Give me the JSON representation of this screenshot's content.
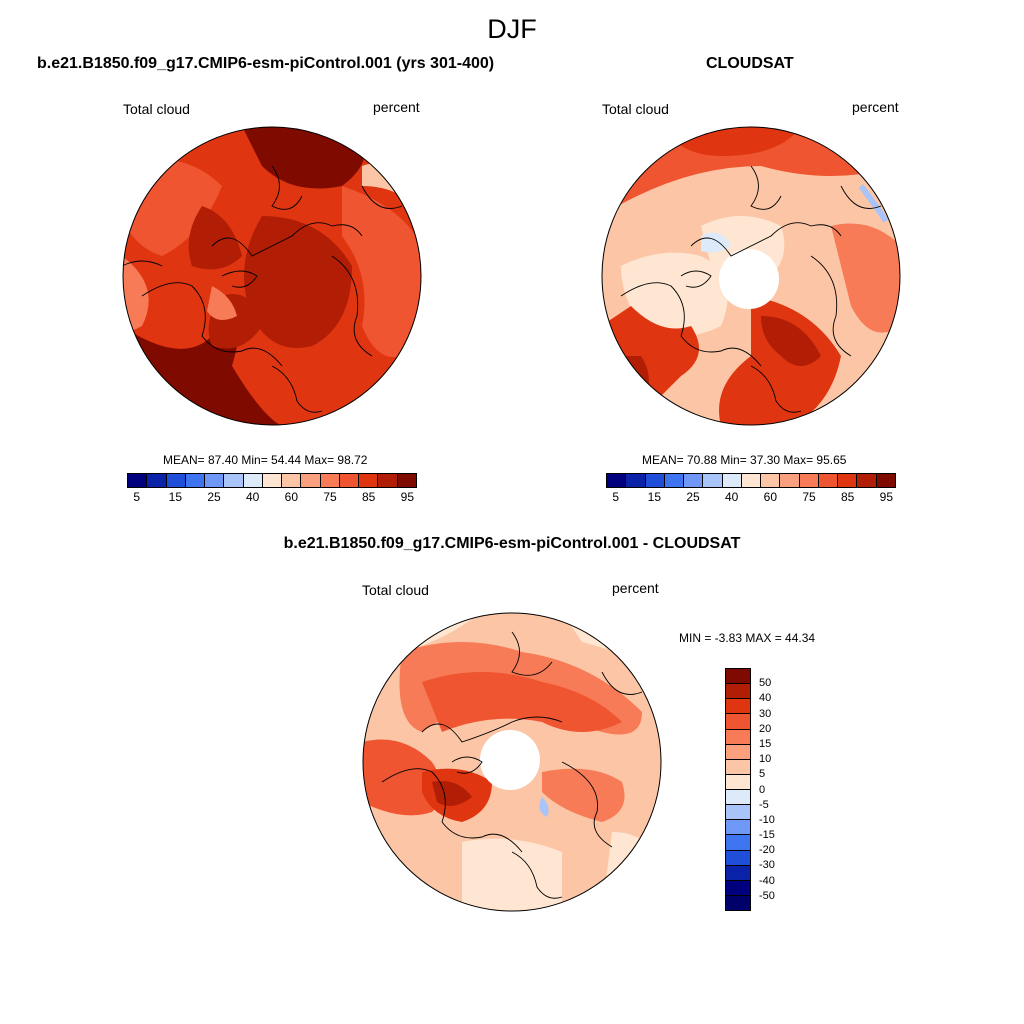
{
  "figure": {
    "title": "DJF"
  },
  "chart_data": [
    {
      "type": "heatmap",
      "title": "b.e21.B1850.f09_g17.CMIP6-esm-piControl.001 (yrs 301-400)",
      "left_label": "Total cloud",
      "right_label": "percent",
      "stats_text": "MEAN=  87.40  Min=  54.44  Max=  98.72",
      "stats": {
        "mean": 87.4,
        "min": 54.44,
        "max": 98.72
      },
      "colorbar": {
        "tick_labels": [
          "5",
          "15",
          "25",
          "40",
          "60",
          "75",
          "85",
          "95"
        ],
        "colors": [
          "#00007f",
          "#0a22a8",
          "#1f4fd8",
          "#3f74f0",
          "#6f98f6",
          "#a9c4f8",
          "#ddeaf9",
          "#fee6d2",
          "#fcc6a6",
          "#fba07e",
          "#f77b56",
          "#ee5530",
          "#df3510",
          "#b21d05",
          "#7f0a00"
        ]
      },
      "projection": "north-polar-stereographic"
    },
    {
      "type": "heatmap",
      "title": "CLOUDSAT",
      "left_label": "Total cloud",
      "right_label": "percent",
      "stats_text": "MEAN=  70.88  Min=  37.30  Max=  95.65",
      "stats": {
        "mean": 70.88,
        "min": 37.3,
        "max": 95.65
      },
      "colorbar": {
        "tick_labels": [
          "5",
          "15",
          "25",
          "40",
          "60",
          "75",
          "85",
          "95"
        ],
        "colors": [
          "#00007f",
          "#0a22a8",
          "#1f4fd8",
          "#3f74f0",
          "#6f98f6",
          "#a9c4f8",
          "#ddeaf9",
          "#fee6d2",
          "#fcc6a6",
          "#fba07e",
          "#f77b56",
          "#ee5530",
          "#df3510",
          "#b21d05",
          "#7f0a00"
        ]
      },
      "projection": "north-polar-stereographic",
      "missing_data_region": "polar cap"
    },
    {
      "type": "heatmap",
      "title": "b.e21.B1850.f09_g17.CMIP6-esm-piControl.001 - CLOUDSAT",
      "left_label": "Total cloud",
      "right_label": "percent",
      "stats_text": "MIN =  -3.83 MAX =  44.34",
      "stats": {
        "min": -3.83,
        "max": 44.34
      },
      "colorbar": {
        "orientation": "vertical",
        "tick_labels": [
          "50",
          "40",
          "30",
          "20",
          "15",
          "10",
          "5",
          "0",
          "-5",
          "-10",
          "-15",
          "-20",
          "-30",
          "-40",
          "-50"
        ],
        "colors": [
          "#7f0a00",
          "#b21d05",
          "#df3510",
          "#ee5530",
          "#f77b56",
          "#fba07e",
          "#fcc6a6",
          "#fee6d2",
          "#ddeaf9",
          "#a9c4f8",
          "#6f98f6",
          "#3f74f0",
          "#1f4fd8",
          "#0a22a8",
          "#00007f",
          "#00006a"
        ]
      },
      "projection": "north-polar-stereographic",
      "missing_data_region": "polar cap"
    }
  ]
}
